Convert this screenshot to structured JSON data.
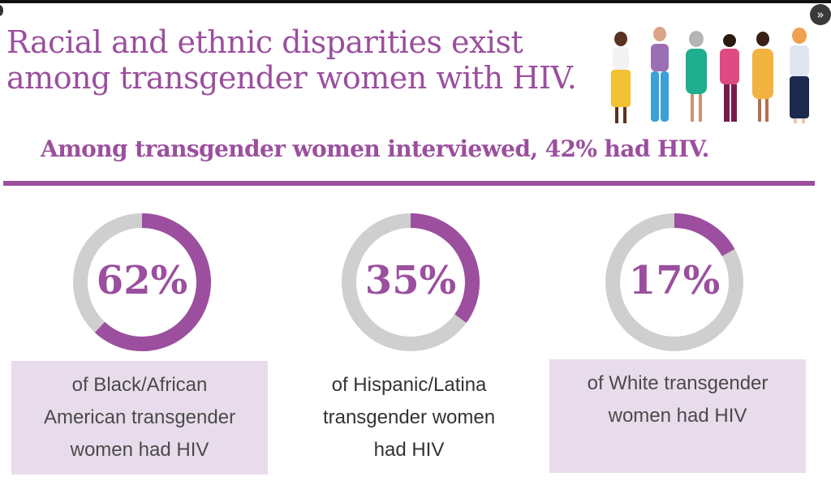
{
  "header": {
    "title_line1": "Racial and ethnic disparities exist",
    "title_line2": "among transgender women with HIV.",
    "subtitle": "Among transgender women interviewed, 42% had HIV.",
    "next_icon": "»"
  },
  "colors": {
    "accent": "#9b4f9e",
    "ring_background": "#cfcfcf",
    "caption_shade": "#e8dcec"
  },
  "chart_data": {
    "type": "pie",
    "title": "Racial and ethnic disparities exist among transgender women with HIV.",
    "subtitle": "Among transgender women interviewed, 42% had HIV.",
    "charts": [
      {
        "label": "62%",
        "value": 62,
        "caption": "of Black/African American transgender women had HIV",
        "caption_lines": [
          "of Black/African",
          "American transgender",
          "women had HIV"
        ],
        "shaded": true
      },
      {
        "label": "35%",
        "value": 35,
        "caption": "of Hispanic/Latina transgender women had HIV",
        "caption_lines": [
          "of Hispanic/Latina",
          "transgender women",
          "had HIV"
        ],
        "shaded": false
      },
      {
        "label": "17%",
        "value": 17,
        "caption": "of White transgender women had HIV",
        "caption_lines": [
          "of White transgender",
          "women had HIV"
        ],
        "shaded": true
      }
    ]
  }
}
